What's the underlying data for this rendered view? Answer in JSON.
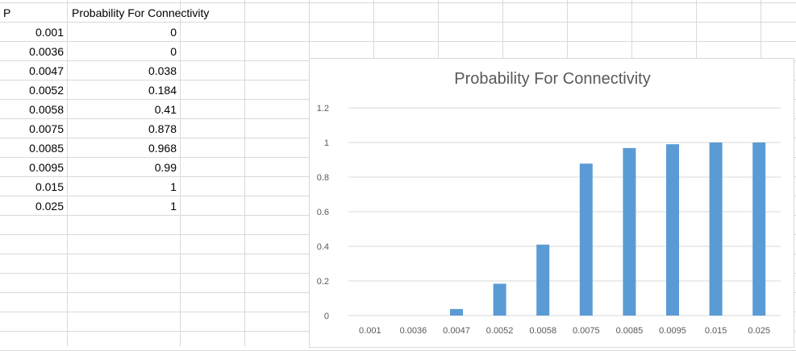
{
  "sheet": {
    "headers": {
      "col_a": "P",
      "col_b": "Probability For Connectivity"
    },
    "rows": [
      {
        "p": "0.001",
        "prob": "0"
      },
      {
        "p": "0.0036",
        "prob": "0"
      },
      {
        "p": "0.0047",
        "prob": "0.038"
      },
      {
        "p": "0.0052",
        "prob": "0.184"
      },
      {
        "p": "0.0058",
        "prob": "0.41"
      },
      {
        "p": "0.0075",
        "prob": "0.878"
      },
      {
        "p": "0.0085",
        "prob": "0.968"
      },
      {
        "p": "0.0095",
        "prob": "0.99"
      },
      {
        "p": "0.015",
        "prob": "1"
      },
      {
        "p": "0.025",
        "prob": "1"
      }
    ]
  },
  "chart_data": {
    "type": "bar",
    "title": "Probability For Connectivity",
    "categories": [
      "0.001",
      "0.0036",
      "0.0047",
      "0.0052",
      "0.0058",
      "0.0075",
      "0.0085",
      "0.0095",
      "0.015",
      "0.025"
    ],
    "values": [
      0,
      0,
      0.038,
      0.184,
      0.41,
      0.878,
      0.968,
      0.99,
      1,
      1
    ],
    "yticks": [
      "0",
      "0.2",
      "0.4",
      "0.6",
      "0.8",
      "1",
      "1.2"
    ],
    "ylim": [
      0,
      1.2
    ],
    "grid": true,
    "legend": "none",
    "bar_color": "#5b9bd5",
    "xlabel": "",
    "ylabel": ""
  }
}
